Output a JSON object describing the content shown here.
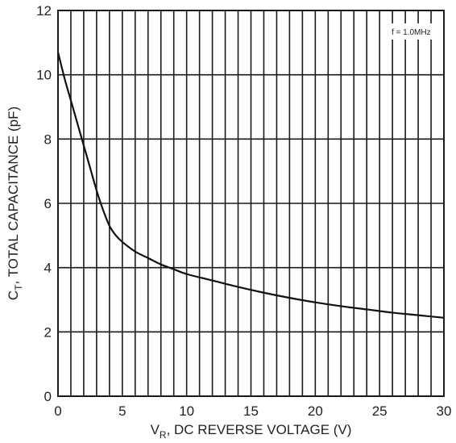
{
  "chart_data": {
    "type": "line",
    "title": "",
    "xlabel": {
      "main": "V",
      "sub": "R",
      "rest": ", DC REVERSE VOLTAGE (V)"
    },
    "ylabel": {
      "main": "C",
      "sub": "T",
      "rest": ", TOTAL CAPACITANCE (pF)"
    },
    "annotation": "f = 1.0MHz",
    "xlim": [
      0,
      30
    ],
    "ylim": [
      0,
      12
    ],
    "x_ticks": [
      0,
      5,
      10,
      15,
      20,
      25,
      30
    ],
    "y_ticks": [
      0,
      2,
      4,
      6,
      8,
      10,
      12
    ],
    "minor_x_step": 1,
    "minor_y_step": 1,
    "grid": true,
    "series": [
      {
        "x": [
          0,
          0.5,
          1,
          1.5,
          2,
          2.5,
          3,
          3.5,
          4,
          4.5,
          5,
          6,
          7,
          8,
          9,
          10,
          12,
          14,
          16,
          18,
          20,
          22,
          24,
          26,
          28,
          30
        ],
        "y": [
          10.7,
          9.9,
          9.2,
          8.5,
          7.8,
          7.1,
          6.4,
          5.8,
          5.3,
          5.0,
          4.8,
          4.5,
          4.3,
          4.1,
          3.95,
          3.8,
          3.6,
          3.4,
          3.22,
          3.06,
          2.92,
          2.8,
          2.7,
          2.6,
          2.52,
          2.44
        ]
      }
    ]
  }
}
